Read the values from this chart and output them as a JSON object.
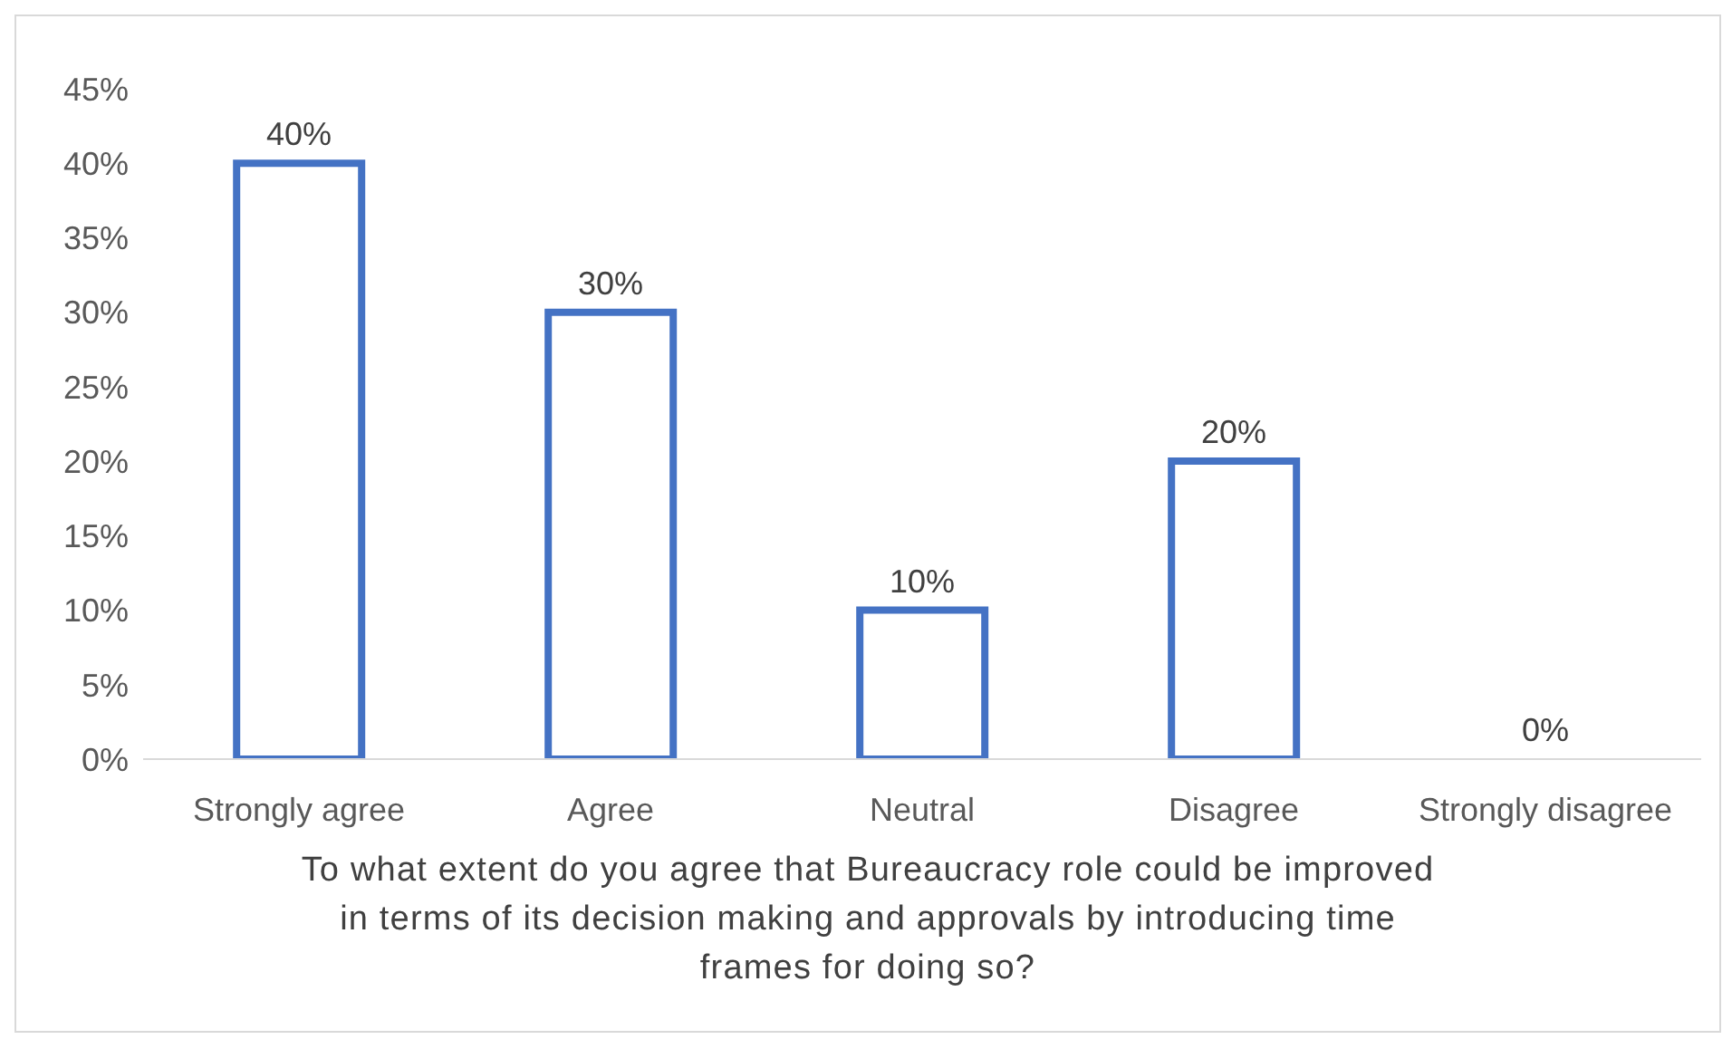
{
  "chart_data": {
    "type": "bar",
    "xlabel": "To what extent do you agree that Bureaucracy role could be improved in terms of its decision making and approvals by introducing time frames for doing so?",
    "categories": [
      "Strongly agree",
      "Agree",
      "Neutral",
      "Disagree",
      "Strongly disagree"
    ],
    "values": [
      40,
      30,
      10,
      20,
      0
    ],
    "value_labels": [
      "40%",
      "30%",
      "10%",
      "20%",
      "0%"
    ],
    "color": "#4472c4",
    "ylim": [
      0,
      45
    ],
    "yticks": [
      {
        "value": 0,
        "label": "0%"
      },
      {
        "value": 5,
        "label": "5%"
      },
      {
        "value": 10,
        "label": "10%"
      },
      {
        "value": 15,
        "label": "15%"
      },
      {
        "value": 20,
        "label": "20%"
      },
      {
        "value": 25,
        "label": "25%"
      },
      {
        "value": 30,
        "label": "30%"
      },
      {
        "value": 35,
        "label": "35%"
      },
      {
        "value": 40,
        "label": "40%"
      },
      {
        "value": 45,
        "label": "45%"
      }
    ],
    "grid": false
  }
}
